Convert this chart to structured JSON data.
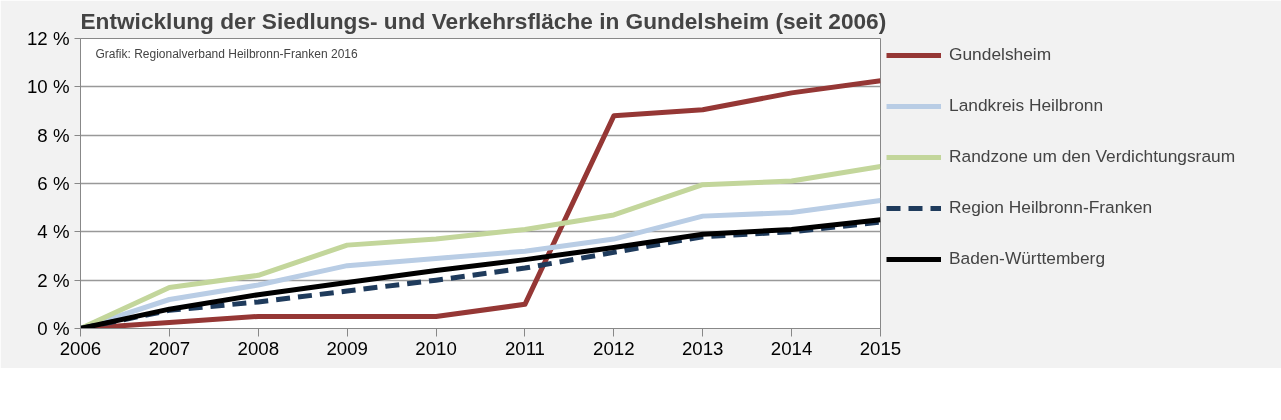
{
  "chart_data": {
    "type": "line",
    "title": "Entwicklung der Siedlungs- und Verkehrsfläche in Gundelsheim (seit 2006)",
    "annotations": [
      "Grafik: Regionalverband Heilbronn-Franken 2016"
    ],
    "x": [
      2006,
      2007,
      2008,
      2009,
      2010,
      2011,
      2012,
      2013,
      2014,
      2015
    ],
    "xlim": [
      2006,
      2015
    ],
    "xticks": [
      2006,
      2007,
      2008,
      2009,
      2010,
      2011,
      2012,
      2013,
      2014,
      2015
    ],
    "ylim": [
      0,
      12
    ],
    "yticks": [
      {
        "value": 0,
        "label": "0 %"
      },
      {
        "value": 2,
        "label": "2 %"
      },
      {
        "value": 4,
        "label": "4 %"
      },
      {
        "value": 6,
        "label": "6 %"
      },
      {
        "value": 8,
        "label": "8 %"
      },
      {
        "value": 10,
        "label": "10 %"
      },
      {
        "value": 12,
        "label": "12 %"
      }
    ],
    "grid": "y",
    "legend": "right",
    "marker": "none",
    "series": [
      {
        "name": "Gundelsheim",
        "color": "#953735",
        "values": [
          0,
          0.25,
          0.5,
          0.5,
          0.5,
          1.0,
          8.8,
          9.05,
          9.75,
          10.25
        ]
      },
      {
        "name": "Landkreis Heilbronn",
        "color": "#b9cde5",
        "values": [
          0,
          1.2,
          1.8,
          2.6,
          2.9,
          3.2,
          3.7,
          4.65,
          4.8,
          5.3
        ]
      },
      {
        "name": "Randzone um den Verdichtungsraum",
        "color": "#c3d69b",
        "values": [
          0,
          1.7,
          2.2,
          3.45,
          3.7,
          4.1,
          4.7,
          5.95,
          6.1,
          6.7
        ]
      },
      {
        "name": "Region Heilbronn-Franken",
        "color": "#1f3b5c",
        "line_style": "dashed",
        "values": [
          0,
          0.75,
          1.1,
          1.55,
          2.0,
          2.5,
          3.15,
          3.8,
          4.0,
          4.4
        ]
      },
      {
        "name": "Baden-Württemberg",
        "color": "#000000",
        "values": [
          0,
          0.8,
          1.4,
          1.9,
          2.4,
          2.85,
          3.35,
          3.9,
          4.1,
          4.5
        ]
      }
    ]
  }
}
